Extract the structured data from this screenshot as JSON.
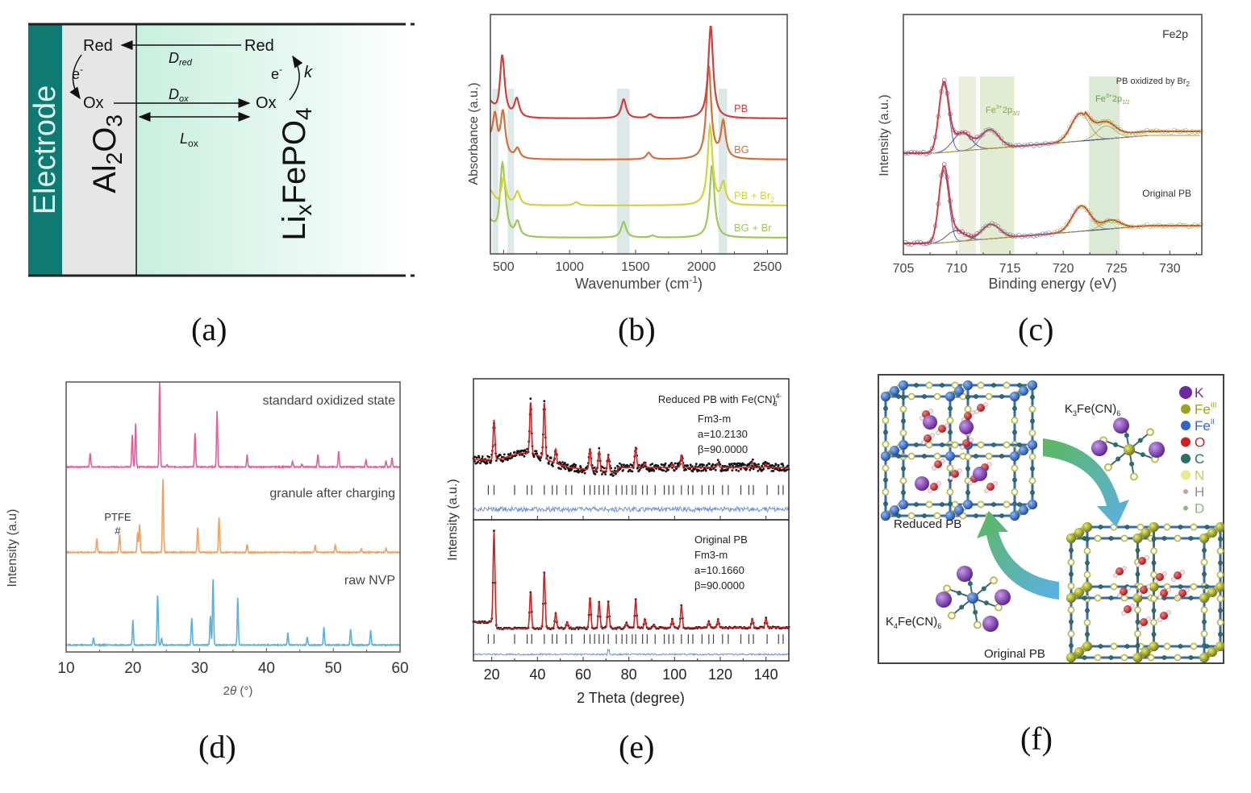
{
  "figure": {
    "captions": [
      "(a)",
      "(b)",
      "(c)",
      "(d)",
      "(e)",
      "(f)"
    ]
  },
  "panel_a": {
    "electrode_label": "Electrode",
    "oxide_label": "Al2O3",
    "oxide_main": "Al",
    "oxide_sub1": "2",
    "oxide_o": "O",
    "oxide_sub2": "3",
    "cathode_main1": "Li",
    "cathode_sub1": "x",
    "cathode_main2": "FePO",
    "cathode_sub2": "4",
    "red_left": "Red",
    "red_right": "Red",
    "ox_left": "Ox",
    "ox_right": "Ox",
    "electron_left": "e",
    "electron_right": "e",
    "electron_sup": "-",
    "rate_constant": "k",
    "d_red": "D",
    "d_red_sub": "red",
    "d_ox": "D",
    "d_ox_sub": "ox",
    "l_ox": "L",
    "l_ox_sub": "ox",
    "colors": {
      "electrode": "#0e7a72",
      "oxide": "#e6e6e6",
      "cathode_start": "#c8efdf",
      "cathode_end": "#ffffff"
    }
  },
  "chart_data": [
    {
      "id": "b",
      "type": "line",
      "title": "",
      "xlabel": "Wavenumber (cm-1)",
      "xlabel_main": "Wavenumber (cm",
      "xlabel_sup": "-1",
      "xlabel_end": ")",
      "ylabel": "Absorbance (a.u.)",
      "xlim": [
        400,
        2650
      ],
      "xticks": [
        500,
        1000,
        1500,
        2000,
        2500
      ],
      "xtick_labels": [
        "500",
        "1000",
        "1500",
        "2000",
        "2500"
      ],
      "highlight_bands": [
        [
          415,
          460
        ],
        [
          530,
          580
        ],
        [
          1360,
          1455
        ],
        [
          2130,
          2195
        ]
      ],
      "series": [
        {
          "name": "BG + Br",
          "label_main": "BG + Br",
          "label_sub": "",
          "color": "#9dc85a",
          "offset": 3,
          "peaks": [
            [
              490,
              10
            ],
            [
              510,
              2.2
            ],
            [
              605,
              2.2
            ],
            [
              1410,
              2.4
            ],
            [
              1630,
              0.3
            ],
            [
              2080,
              11
            ]
          ]
        },
        {
          "name": "PB + Br2",
          "label_main": "PB + Br",
          "label_sub": "2",
          "color": "#d0d43a",
          "offset": 2,
          "peaks": [
            [
              500,
              4.2
            ],
            [
              605,
              2.0
            ],
            [
              1050,
              0.5
            ],
            [
              2065,
              12
            ],
            [
              2165,
              3.2
            ]
          ]
        },
        {
          "name": "BG",
          "label_main": "BG",
          "label_sub": "",
          "color": "#d0703a",
          "offset": 1,
          "peaks": [
            [
              435,
              5.5
            ],
            [
              495,
              6.8
            ],
            [
              605,
              1.5
            ],
            [
              1600,
              1.0
            ],
            [
              2055,
              14
            ],
            [
              2165,
              5.5
            ]
          ]
        },
        {
          "name": "PB",
          "label_main": "PB",
          "label_sub": "",
          "color": "#cc4040",
          "offset": 0,
          "peaks": [
            [
              490,
              9.5
            ],
            [
              600,
              2.8
            ],
            [
              1410,
              2.9
            ],
            [
              1610,
              0.6
            ],
            [
              2070,
              14
            ]
          ]
        }
      ]
    },
    {
      "id": "c",
      "type": "scatter",
      "title": "Fe2p",
      "xlabel": "Binding energy (eV)",
      "ylabel": "Intensity (a.u.)",
      "xlim": [
        705,
        733
      ],
      "xticks": [
        705,
        710,
        715,
        720,
        725,
        730
      ],
      "xtick_labels": [
        "705",
        "710",
        "715",
        "720",
        "725",
        "730"
      ],
      "highlight_bands": [
        [
          710.2,
          711.8
        ],
        [
          712.2,
          715.4
        ],
        [
          722.4,
          725.3
        ]
      ],
      "annotations": [
        {
          "text_main": "PB  oxidized by Br",
          "text_sub": "2"
        },
        {
          "text_main": "Fe",
          "text_sup": "3+",
          "text_mid": "2p",
          "text_sub": "3/2"
        },
        {
          "text_main": "Fe",
          "text_sup": "3+",
          "text_mid": "2p",
          "text_sub": "1/2"
        },
        {
          "text_main": "Original PB"
        }
      ],
      "series": [
        {
          "name": "PB oxidized by Br2",
          "offset": 1,
          "peaks": [
            [
              708.8,
              9.5
            ],
            [
              710.5,
              2.5
            ],
            [
              713.1,
              2.6
            ],
            [
              721.6,
              3.8
            ],
            [
              724.0,
              1.8
            ]
          ]
        },
        {
          "name": "Original PB",
          "offset": 0,
          "peaks": [
            [
              708.8,
              10
            ],
            [
              709.9,
              1.5
            ],
            [
              713.2,
              2.0
            ],
            [
              721.7,
              3.5
            ],
            [
              724.5,
              1.2
            ]
          ]
        }
      ]
    },
    {
      "id": "d",
      "type": "line",
      "xlabel": "2θ (°)",
      "xlabel_main": "2",
      "xlabel_theta": "θ",
      "xlabel_end": " (°)",
      "ylabel": "Intensity (a.u)",
      "xlim": [
        10,
        60
      ],
      "xticks": [
        10,
        20,
        30,
        40,
        50,
        60
      ],
      "xtick_labels": [
        "10",
        "20",
        "30",
        "40",
        "50",
        "60"
      ],
      "annotation": {
        "text": "PTFE",
        "marker": "#",
        "x": 18
      },
      "series": [
        {
          "name": "standard oxidized state",
          "color": "#e0609a",
          "offset": 2,
          "peaks": [
            [
              13.6,
              1.8
            ],
            [
              19.9,
              4.2
            ],
            [
              20.4,
              5.6
            ],
            [
              24.0,
              11
            ],
            [
              25.1,
              0.3
            ],
            [
              29.3,
              4.4
            ],
            [
              32.6,
              7.2
            ],
            [
              37.1,
              1.6
            ],
            [
              43.9,
              0.7
            ],
            [
              45.3,
              0.4
            ],
            [
              47.7,
              1.6
            ],
            [
              50.8,
              2.0
            ],
            [
              54.9,
              0.9
            ],
            [
              57.9,
              0.8
            ],
            [
              58.8,
              1.2
            ]
          ]
        },
        {
          "name": "granule after charging",
          "color": "#f0a060",
          "offset": 1,
          "peaks": [
            [
              14.6,
              1.8
            ],
            [
              18.0,
              2.4
            ],
            [
              20.7,
              2.6
            ],
            [
              21.0,
              3.6
            ],
            [
              24.5,
              9.5
            ],
            [
              29.7,
              3.2
            ],
            [
              32.9,
              4.5
            ],
            [
              37.1,
              1.0
            ],
            [
              47.3,
              0.9
            ],
            [
              50.3,
              1.0
            ],
            [
              54.2,
              0.5
            ],
            [
              57.9,
              0.5
            ]
          ]
        },
        {
          "name": "raw NVP",
          "color": "#5ab0e0",
          "offset": 0,
          "peaks": [
            [
              14.1,
              0.9
            ],
            [
              20.0,
              3.2
            ],
            [
              23.7,
              6.4
            ],
            [
              24.3,
              0.9
            ],
            [
              28.8,
              3.5
            ],
            [
              31.6,
              3.8
            ],
            [
              32.0,
              8.5
            ],
            [
              35.7,
              6.1
            ],
            [
              43.2,
              1.6
            ],
            [
              46.1,
              1.0
            ],
            [
              48.6,
              2.3
            ],
            [
              52.6,
              2.1
            ],
            [
              55.6,
              1.9
            ]
          ]
        }
      ]
    },
    {
      "id": "e",
      "type": "scatter",
      "xlabel": "2 Theta (degree)",
      "ylabel": "Intensity (a.u.)",
      "xlim": [
        12,
        150
      ],
      "xticks": [
        20,
        40,
        60,
        80,
        100,
        120,
        140
      ],
      "xtick_labels": [
        "20",
        "40",
        "60",
        "80",
        "100",
        "120",
        "140"
      ],
      "subplots": [
        {
          "name": "Reduced PB with Fe(CN)6 4-",
          "label_main": "Reduced PB with Fe(CN)",
          "label_sup": "4-",
          "label_sub": "6",
          "space_group": "Fm3-m",
          "a": "a=10.2130",
          "beta": "β=90.0000",
          "peaks": [
            [
              21,
              4.5
            ],
            [
              37,
              5.8
            ],
            [
              43,
              6.3
            ],
            [
              48,
              1.6
            ],
            [
              63,
              2.4
            ],
            [
              67,
              2.2
            ],
            [
              71,
              1.8
            ],
            [
              83,
              2.2
            ],
            [
              87,
              0.5
            ],
            [
              99,
              0.4
            ],
            [
              103,
              1.4
            ],
            [
              119,
              0.5
            ],
            [
              134,
              0.6
            ],
            [
              140,
              0.4
            ]
          ]
        },
        {
          "name": "Original PB",
          "label_main": "Original PB",
          "space_group": "Fm3-m",
          "a": "a=10.1660",
          "beta": "β=90.0000",
          "peaks": [
            [
              21,
              9.0
            ],
            [
              37,
              3.6
            ],
            [
              43,
              5.6
            ],
            [
              48,
              1.5
            ],
            [
              53,
              0.6
            ],
            [
              63,
              3.0
            ],
            [
              67,
              2.6
            ],
            [
              71,
              2.6
            ],
            [
              79,
              0.5
            ],
            [
              83,
              2.8
            ],
            [
              87,
              0.9
            ],
            [
              91,
              0.3
            ],
            [
              99,
              0.8
            ],
            [
              103,
              2.2
            ],
            [
              115,
              0.6
            ],
            [
              119,
              0.8
            ],
            [
              134,
              0.9
            ],
            [
              140,
              0.9
            ]
          ]
        }
      ],
      "bragg_ticks": [
        18.5,
        21,
        30,
        35.5,
        37.5,
        43,
        46.5,
        48.5,
        52.5,
        55,
        60.5,
        63,
        65,
        67,
        69,
        71,
        74.5,
        77,
        79,
        81.5,
        83,
        86,
        88,
        91.5,
        95.5,
        97.5,
        99.5,
        103,
        106,
        108,
        112,
        115,
        117,
        121,
        123.5,
        129,
        132.5,
        134.5,
        140.5,
        145.5,
        147.5
      ]
    }
  ],
  "panel_f": {
    "reduced_label": "Reduced PB",
    "original_label": "Original PB",
    "k3_label_a": "K",
    "k3_label_sub1": "3",
    "k3_label_b": "Fe(CN)",
    "k3_label_sub2": "6",
    "k4_label_a": "K",
    "k4_label_sub1": "4",
    "k4_label_b": "Fe(CN)",
    "k4_label_sub2": "6",
    "legend": [
      {
        "symbol": "K",
        "sup": "",
        "color": "#6a2aa0",
        "text_color": "#6a2aa0",
        "size": "large"
      },
      {
        "symbol": "Fe",
        "sup": "III",
        "color": "#9aa21e",
        "text_color": "#9aa21e",
        "size": "medium"
      },
      {
        "symbol": "Fe",
        "sup": "II",
        "color": "#2f66c8",
        "text_color": "#2f66c8",
        "size": "medium"
      },
      {
        "symbol": "O",
        "sup": "",
        "color": "#d02020",
        "text_color": "#d02020",
        "size": "medium"
      },
      {
        "symbol": "C",
        "sup": "",
        "color": "#2e6e6a",
        "text_color": "#2e6e6a",
        "size": "medium"
      },
      {
        "symbol": "N",
        "sup": "",
        "color": "#e8e890",
        "text_color": "#c8c860",
        "size": "medium"
      },
      {
        "symbol": "H",
        "sup": "",
        "color": "#c0a0a8",
        "text_color": "#a08890",
        "size": "small"
      },
      {
        "symbol": "D",
        "sup": "",
        "color": "#80c070",
        "text_color": "#80c070",
        "size": "small"
      }
    ]
  }
}
